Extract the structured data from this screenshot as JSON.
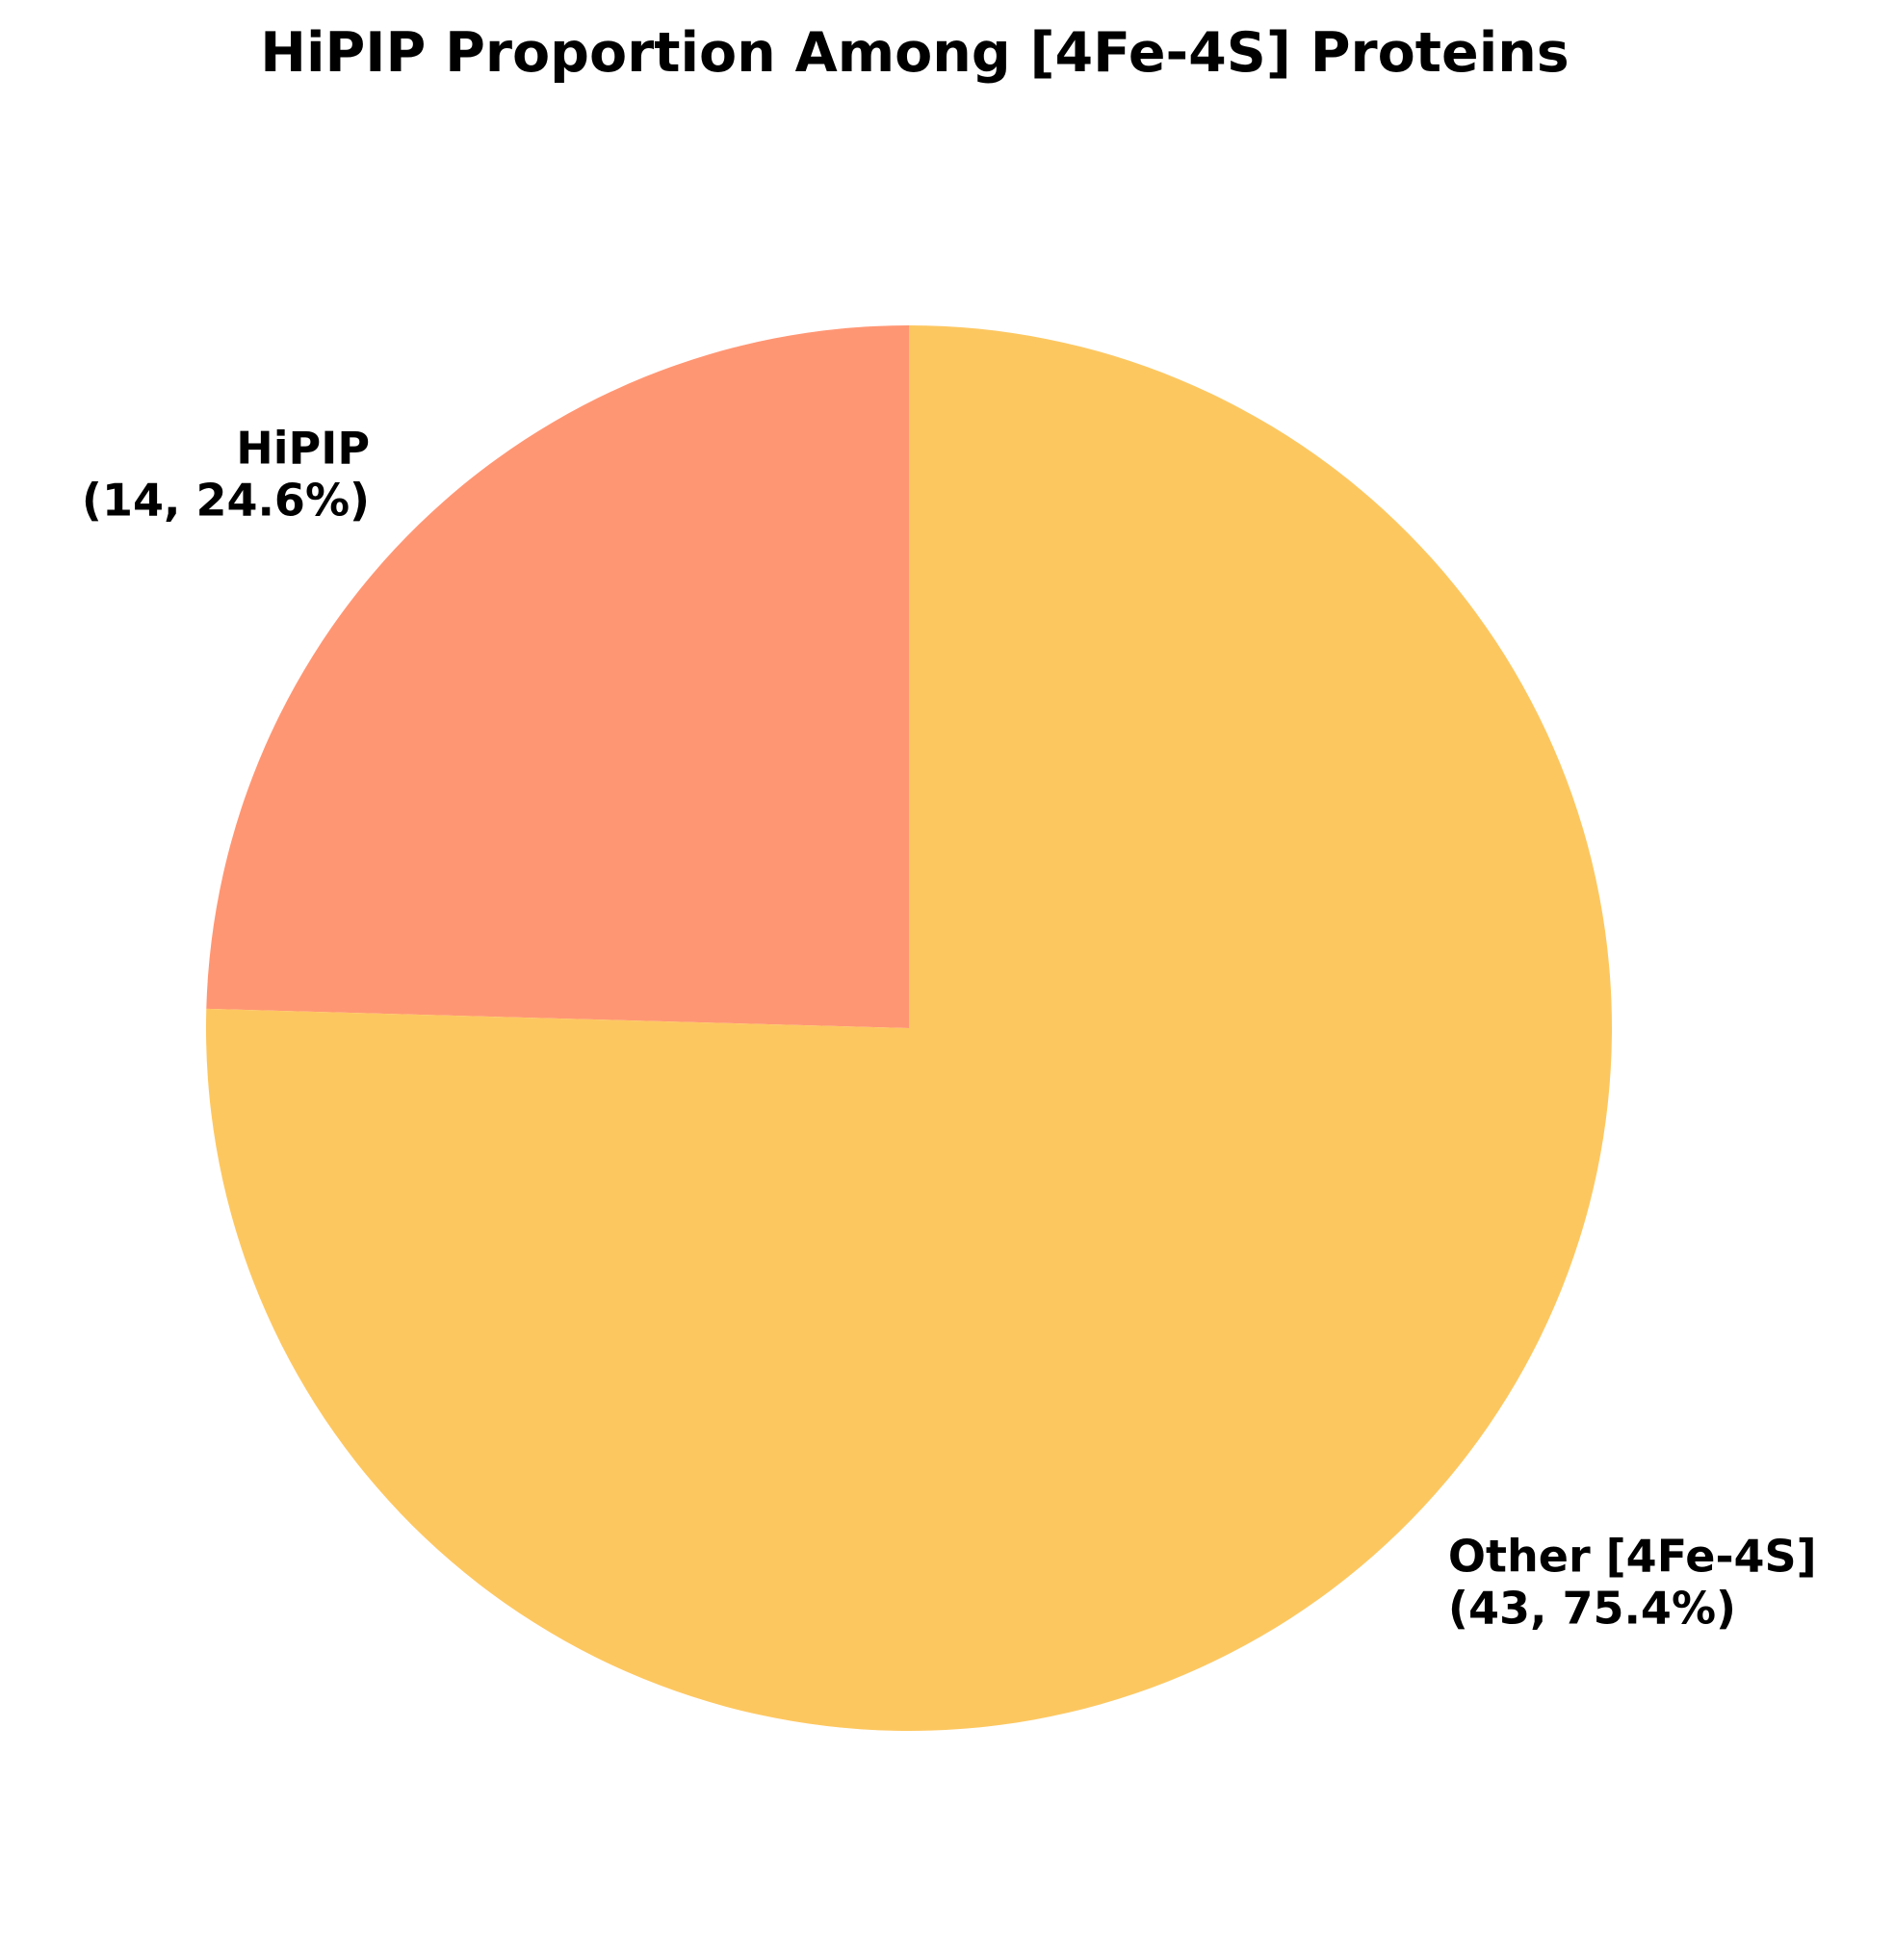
{
  "chart_data": {
    "type": "pie",
    "title": "HiPIP Proportion Among [4Fe-4S] Proteins",
    "start_angle_deg": 90,
    "direction": "counterclockwise",
    "slices": [
      {
        "label": "HiPIP",
        "value": 14,
        "percent": 24.6,
        "label_line1": "HiPIP",
        "label_line2": "(14, 24.6%)",
        "color": "#FF9673"
      },
      {
        "label": "Other [4Fe-4S]",
        "value": 43,
        "percent": 75.4,
        "label_line1": "Other [4Fe-4S]",
        "label_line2": "(43, 75.4%)",
        "color": "#FDC760"
      }
    ]
  }
}
